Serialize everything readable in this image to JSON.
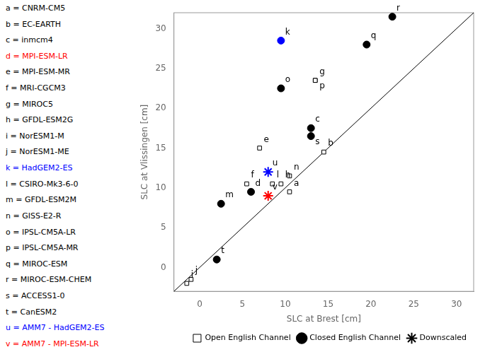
{
  "chart_data": {
    "type": "scatter",
    "xlabel": "SLC at Brest [cm]",
    "ylabel": "SLC at Vlissingen [cm]",
    "xlim": [
      -3,
      32
    ],
    "ylim": [
      -3,
      32
    ],
    "xticks": [
      0,
      5,
      10,
      15,
      20,
      25,
      30
    ],
    "yticks": [
      0,
      5,
      10,
      15,
      20,
      25,
      30
    ],
    "grid": false,
    "legend": "lower right",
    "identity_line": {
      "x": [
        -3,
        32
      ],
      "values": [
        -3,
        32
      ],
      "color": "#000000"
    },
    "series": [
      {
        "name": "Open English Channel",
        "marker": "square",
        "color": "#000000",
        "labels": [
          "a",
          "b",
          "e",
          "f",
          "g",
          "h",
          "i",
          "j",
          "l",
          "n",
          "p"
        ],
        "x": [
          10.5,
          14.5,
          7.0,
          5.5,
          13.5,
          9.5,
          -1.5,
          -1.0,
          8.5,
          10.5,
          13.5
        ],
        "values": [
          9.5,
          14.5,
          15.0,
          10.5,
          23.5,
          10.5,
          -2.0,
          -1.5,
          10.5,
          11.5,
          23.5
        ]
      },
      {
        "name": "Closed English Channel",
        "marker": "circle",
        "color": "#000000",
        "labels": [
          "c",
          "d",
          "k",
          "m",
          "o",
          "q",
          "r",
          "s",
          "t"
        ],
        "x": [
          13.0,
          6.0,
          9.5,
          2.5,
          9.5,
          19.5,
          22.5,
          13.0,
          2.0
        ],
        "values": [
          17.5,
          9.5,
          28.5,
          8.0,
          22.5,
          28.0,
          31.5,
          16.5,
          1.0
        ],
        "colors": [
          "#000000",
          "#000000",
          "#0000ff",
          "#000000",
          "#000000",
          "#000000",
          "#000000",
          "#000000",
          "#000000"
        ]
      },
      {
        "name": "Downscaled",
        "marker": "asterisk",
        "color": "#000000",
        "labels": [
          "u",
          "v"
        ],
        "x": [
          8.0,
          8.0
        ],
        "values": [
          12.0,
          9.0
        ],
        "colors": [
          "#0000ff",
          "#ff0000"
        ]
      }
    ],
    "annotations": [
      {
        "text": "a = CNRM-CM5",
        "color": "#000000"
      },
      {
        "text": "b = EC-EARTH",
        "color": "#000000"
      },
      {
        "text": "c = inmcm4",
        "color": "#000000"
      },
      {
        "text": "d = MPI-ESM-LR",
        "color": "#ff0000"
      },
      {
        "text": "e = MPI-ESM-MR",
        "color": "#000000"
      },
      {
        "text": "f = MRI-CGCM3",
        "color": "#000000"
      },
      {
        "text": "g = MIROC5",
        "color": "#000000"
      },
      {
        "text": "h = GFDL-ESM2G",
        "color": "#000000"
      },
      {
        "text": "i = NorESM1-M",
        "color": "#000000"
      },
      {
        "text": "j = NorESM1-ME",
        "color": "#000000"
      },
      {
        "text": "k = HadGEM2-ES",
        "color": "#0000ff"
      },
      {
        "text": "l = CSIRO-Mk3-6-0",
        "color": "#000000"
      },
      {
        "text": "m = GFDL-ESM2M",
        "color": "#000000"
      },
      {
        "text": "n = GISS-E2-R",
        "color": "#000000"
      },
      {
        "text": "o = IPSL-CM5A-LR",
        "color": "#000000"
      },
      {
        "text": "p = IPSL-CM5A-MR",
        "color": "#000000"
      },
      {
        "text": "q = MIROC-ESM",
        "color": "#000000"
      },
      {
        "text": "r = MIROC-ESM-CHEM",
        "color": "#000000"
      },
      {
        "text": "s = ACCESS1-0",
        "color": "#000000"
      },
      {
        "text": "t = CanESM2",
        "color": "#000000"
      },
      {
        "text": "u = AMM7 - HadGEM2-ES",
        "color": "#0000ff"
      },
      {
        "text": "v = AMM7 - MPI-ESM-LR",
        "color": "#ff0000"
      }
    ]
  }
}
